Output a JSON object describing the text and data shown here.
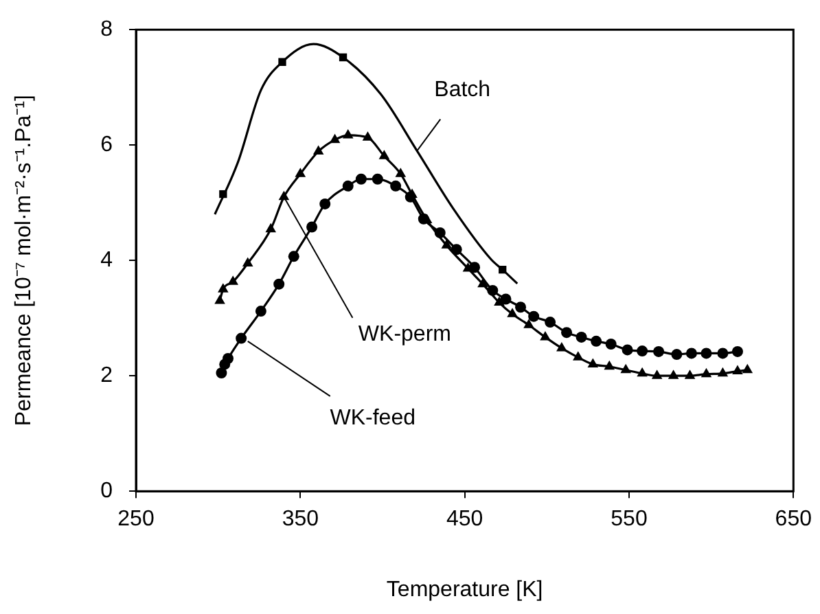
{
  "chart_data": {
    "type": "line",
    "xlabel": "Temperature [K]",
    "ylabel": "Permeance [10⁻⁷ mol·m⁻²·s⁻¹.Pa⁻¹]",
    "xlim": [
      250,
      650
    ],
    "xticks": [
      250,
      350,
      450,
      550,
      650
    ],
    "ylim": [
      0,
      8
    ],
    "yticks": [
      0,
      2,
      4,
      6,
      8
    ],
    "grid": false,
    "legend": false,
    "series": [
      {
        "type": "line",
        "marker": "none",
        "color": "#000000",
        "x": [
          298,
          312,
          326,
          339,
          358,
          376,
          399,
          421,
          443,
          466,
          473,
          482
        ],
        "values": [
          4.8,
          5.7,
          6.95,
          7.44,
          7.75,
          7.52,
          6.88,
          5.9,
          4.9,
          4.02,
          3.84,
          3.6
        ]
      },
      {
        "type": "scatter",
        "marker": "square",
        "color": "#000000",
        "x": [
          303,
          339,
          376,
          473
        ],
        "values": [
          5.15,
          7.44,
          7.52,
          3.84
        ]
      },
      {
        "type": "line",
        "marker": "triangle",
        "color": "#000000",
        "x": [
          301,
          303,
          309,
          318,
          332,
          340,
          350,
          361,
          371,
          379,
          391,
          401,
          411,
          418,
          427,
          439,
          452,
          461,
          471,
          479,
          489,
          499,
          509,
          519,
          528,
          538,
          548,
          558,
          567,
          577,
          587,
          597,
          607,
          616,
          622
        ],
        "values": [
          3.3,
          3.5,
          3.63,
          3.95,
          4.54,
          5.1,
          5.5,
          5.89,
          6.09,
          6.17,
          6.13,
          5.81,
          5.5,
          5.14,
          4.7,
          4.26,
          3.86,
          3.59,
          3.27,
          3.07,
          2.88,
          2.67,
          2.48,
          2.32,
          2.2,
          2.16,
          2.1,
          2.04,
          2.0,
          2.0,
          2.0,
          2.03,
          2.04,
          2.08,
          2.1
        ]
      },
      {
        "type": "line",
        "marker": "circle",
        "color": "#000000",
        "x": [
          302,
          304,
          306,
          314,
          326,
          337,
          346,
          357,
          365,
          379,
          387,
          397,
          408,
          417,
          425,
          435,
          445,
          456,
          467,
          475,
          484,
          492,
          502,
          512,
          521,
          530,
          539,
          549,
          558,
          568,
          579,
          588,
          597,
          607,
          616
        ],
        "values": [
          2.05,
          2.2,
          2.3,
          2.65,
          3.12,
          3.59,
          4.07,
          4.58,
          4.98,
          5.29,
          5.41,
          5.41,
          5.29,
          5.1,
          4.72,
          4.48,
          4.19,
          3.88,
          3.48,
          3.33,
          3.19,
          3.03,
          2.93,
          2.75,
          2.67,
          2.6,
          2.55,
          2.45,
          2.43,
          2.42,
          2.37,
          2.39,
          2.39,
          2.39,
          2.42
        ]
      }
    ],
    "annotations": [
      {
        "text": "Batch",
        "x": 421,
        "y": 5.9
      },
      {
        "text": "WK-perm",
        "x": 340,
        "y": 5.1
      },
      {
        "text": "WK-feed",
        "x": 318,
        "y": 2.6
      }
    ]
  }
}
